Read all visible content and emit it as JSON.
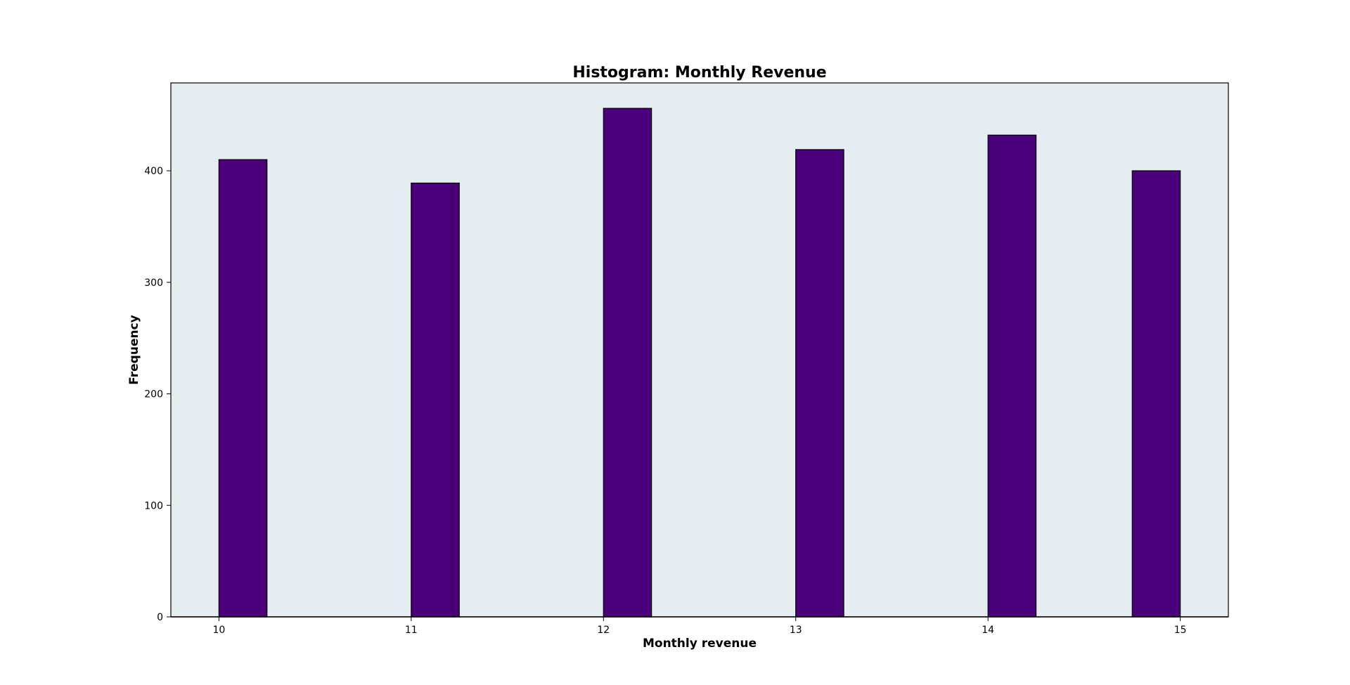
{
  "chart_data": {
    "type": "bar",
    "title": "Histogram: Monthly Revenue",
    "xlabel": "Monthly revenue",
    "ylabel": "Frequency",
    "bins": [
      {
        "start": 10.0,
        "end": 10.25,
        "count": 410
      },
      {
        "start": 11.0,
        "end": 11.25,
        "count": 389
      },
      {
        "start": 12.0,
        "end": 12.25,
        "count": 456
      },
      {
        "start": 13.0,
        "end": 13.25,
        "count": 419
      },
      {
        "start": 14.0,
        "end": 14.25,
        "count": 432
      },
      {
        "start": 14.75,
        "end": 15.0,
        "count": 400
      }
    ],
    "xticks": [
      "10",
      "11",
      "12",
      "13",
      "14",
      "15"
    ],
    "yticks": [
      "0",
      "100",
      "200",
      "300",
      "400"
    ],
    "xlim": [
      9.75,
      15.25
    ],
    "ylim": [
      0,
      478.8
    ],
    "grid": false,
    "legend": "none",
    "colors": {
      "bar_fill": "#4b0079",
      "bar_edge": "#000000",
      "plot_background": "#e6edf1",
      "figure_background": "#ffffff"
    }
  }
}
